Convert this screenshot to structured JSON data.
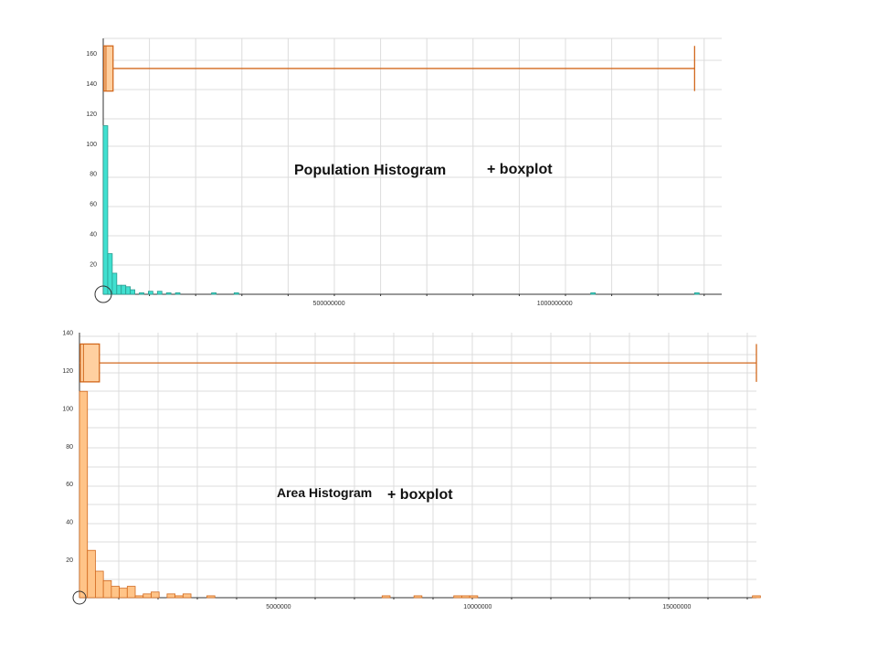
{
  "chart_data": [
    {
      "type": "bar",
      "title": "Population Histogram",
      "title_suffix": "+ boxplot",
      "bar_color": "#40e0d0",
      "bar_stroke": "#2a9c90",
      "box_color": "#ffd0a0",
      "box_stroke": "#d2691e",
      "xlim": [
        0,
        1370000000
      ],
      "ylim": [
        0,
        170
      ],
      "y_ticks": [
        20,
        40,
        60,
        80,
        100,
        120,
        140,
        160
      ],
      "x_ticks": [
        500000000,
        1000000000
      ],
      "x_tick_labels": [
        "500000000",
        "1000000000"
      ],
      "bin_width": 10000000,
      "bins": [
        {
          "x": 0,
          "count": 112
        },
        {
          "x": 10000000,
          "count": 27
        },
        {
          "x": 20000000,
          "count": 14
        },
        {
          "x": 30000000,
          "count": 6
        },
        {
          "x": 40000000,
          "count": 6
        },
        {
          "x": 50000000,
          "count": 5
        },
        {
          "x": 60000000,
          "count": 3
        },
        {
          "x": 80000000,
          "count": 1
        },
        {
          "x": 100000000,
          "count": 2
        },
        {
          "x": 120000000,
          "count": 2
        },
        {
          "x": 140000000,
          "count": 1
        },
        {
          "x": 160000000,
          "count": 1
        },
        {
          "x": 240000000,
          "count": 1
        },
        {
          "x": 290000000,
          "count": 1
        },
        {
          "x": 1080000000,
          "count": 1
        },
        {
          "x": 1310000000,
          "count": 1
        }
      ],
      "boxplot": {
        "min": 0,
        "q1": 1500000,
        "median": 6000000,
        "q3": 20000000,
        "max": 1310000000,
        "y_center": 150,
        "y_low": 135,
        "y_high": 165
      }
    },
    {
      "type": "bar",
      "title": "Area Histogram",
      "title_suffix": "+ boxplot",
      "bar_color": "#ffc488",
      "bar_stroke": "#d2691e",
      "box_color": "#ffd0a0",
      "box_stroke": "#d2691e",
      "xlim": [
        0,
        17000000
      ],
      "ylim": [
        0,
        140
      ],
      "y_ticks": [
        20,
        40,
        60,
        80,
        100,
        120,
        140
      ],
      "x_ticks": [
        5000000,
        10000000,
        15000000
      ],
      "x_tick_labels": [
        "5000000",
        "10000000",
        "15000000"
      ],
      "bin_width": 200000,
      "bins": [
        {
          "x": 0,
          "count": 109
        },
        {
          "x": 200000,
          "count": 25
        },
        {
          "x": 400000,
          "count": 14
        },
        {
          "x": 600000,
          "count": 9
        },
        {
          "x": 800000,
          "count": 6
        },
        {
          "x": 1000000,
          "count": 5
        },
        {
          "x": 1200000,
          "count": 6
        },
        {
          "x": 1400000,
          "count": 1
        },
        {
          "x": 1600000,
          "count": 2
        },
        {
          "x": 1800000,
          "count": 3
        },
        {
          "x": 2200000,
          "count": 2
        },
        {
          "x": 2400000,
          "count": 1
        },
        {
          "x": 2600000,
          "count": 2
        },
        {
          "x": 3200000,
          "count": 1
        },
        {
          "x": 7600000,
          "count": 1
        },
        {
          "x": 8400000,
          "count": 1
        },
        {
          "x": 9400000,
          "count": 1
        },
        {
          "x": 9600000,
          "count": 1
        },
        {
          "x": 9800000,
          "count": 1
        },
        {
          "x": 16900000,
          "count": 1
        }
      ],
      "boxplot": {
        "min": 0,
        "q1": 20000,
        "median": 100000,
        "q3": 500000,
        "max": 17000000,
        "y_center": 124,
        "y_low": 114,
        "y_high": 134
      }
    }
  ]
}
